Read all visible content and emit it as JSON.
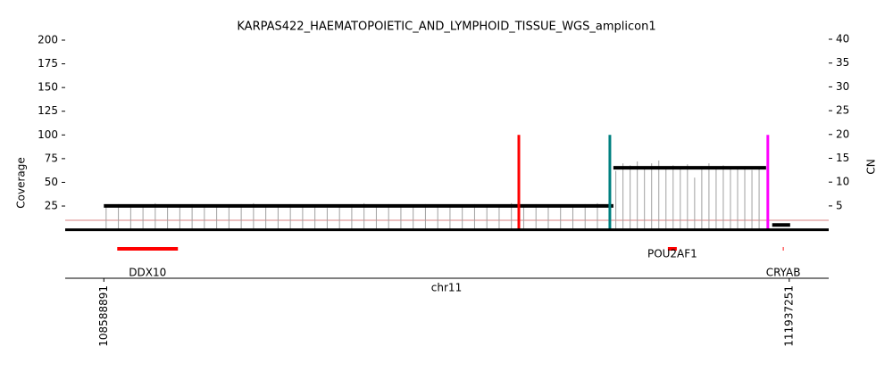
{
  "chart_data": {
    "type": "amplicon",
    "title": "KARPAS422_HAEMATOPOIETIC_AND_LYMPHOID_TISSUE_WGS_amplicon1",
    "ylabel": "Coverage",
    "y2label": "CN",
    "xlabel": "chr11",
    "xlim": [
      108400000,
      112130000
    ],
    "xticks": [
      108588891,
      111937251
    ],
    "ylim": [
      0,
      200
    ],
    "yticks": [
      25,
      50,
      75,
      100,
      125,
      150,
      175,
      200
    ],
    "y2lim": [
      0,
      40
    ],
    "y2ticks": [
      5,
      10,
      15,
      20,
      25,
      30,
      35,
      40
    ],
    "coverage": {
      "color": "#a0a0a0",
      "x": [
        108600000,
        108660000,
        108720000,
        108780000,
        108840000,
        108900000,
        108960000,
        109020000,
        109080000,
        109140000,
        109200000,
        109260000,
        109320000,
        109380000,
        109440000,
        109500000,
        109560000,
        109620000,
        109680000,
        109740000,
        109800000,
        109860000,
        109920000,
        109980000,
        110040000,
        110100000,
        110160000,
        110220000,
        110280000,
        110340000,
        110400000,
        110460000,
        110520000,
        110580000,
        110640000,
        110700000,
        110760000,
        110820000,
        110880000,
        110940000,
        111000000,
        111090000,
        111125000,
        111160000,
        111195000,
        111230000,
        111265000,
        111300000,
        111335000,
        111370000,
        111405000,
        111440000,
        111475000,
        111510000,
        111545000,
        111580000,
        111615000,
        111650000,
        111685000,
        111720000,
        111755000,
        111790000
      ],
      "values": [
        26,
        27,
        25,
        26,
        28,
        26,
        25,
        27,
        26,
        24,
        26,
        27,
        28,
        26,
        25,
        27,
        26,
        25,
        23,
        26,
        27,
        28,
        26,
        27,
        25,
        26,
        27,
        26,
        25,
        26,
        27,
        26,
        25,
        28,
        26,
        27,
        26,
        25,
        26,
        27,
        28,
        62,
        70,
        68,
        72,
        66,
        70,
        73,
        64,
        68,
        66,
        69,
        55,
        67,
        70,
        66,
        68,
        64,
        65,
        67,
        63,
        66
      ]
    },
    "segments": {
      "color": "#000000",
      "starts": [
        108588891,
        111078000,
        111854000
      ],
      "ends": [
        111078000,
        111824000,
        111941600
      ],
      "values": [
        5,
        13,
        1
      ]
    },
    "breakpoints": {
      "x": [
        110616200,
        111060900,
        111832600
      ],
      "colors": [
        "#ff0000",
        "#008080",
        "#ff00ff"
      ],
      "values": [
        100,
        100,
        100
      ]
    },
    "threshold": {
      "value": 10,
      "color": "#d98080"
    },
    "genes": {
      "color": "#ff0000",
      "names": [
        "DDX10",
        "POU2AF1",
        "CRYAB"
      ],
      "starts": [
        108654300,
        111344300,
        111906000
      ],
      "ends": [
        108950700,
        111387900,
        111910000
      ]
    }
  }
}
